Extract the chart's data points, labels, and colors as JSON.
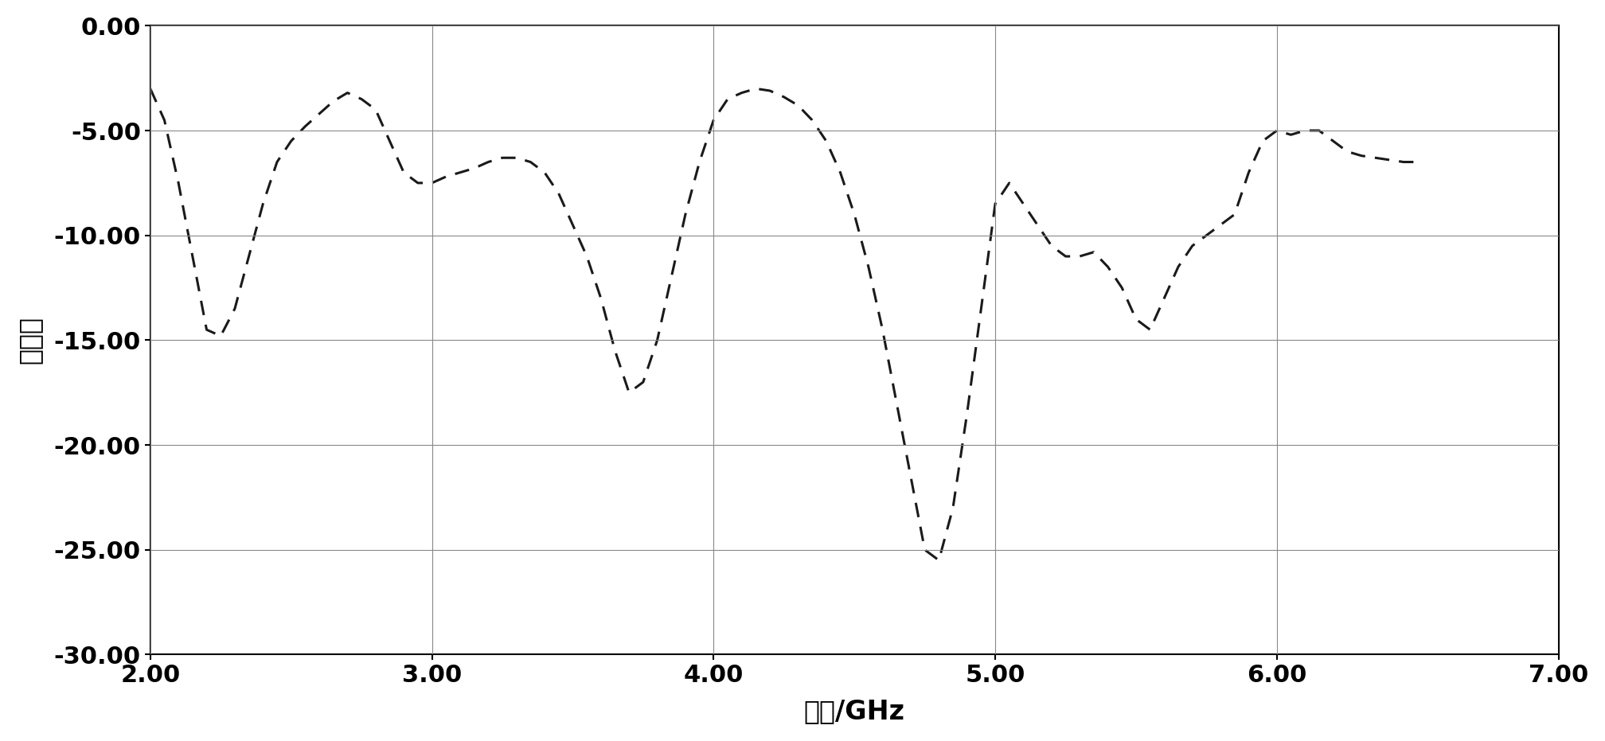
{
  "title": "",
  "xlabel": "频率/GHz",
  "ylabel": "驻波比",
  "xlim": [
    2.0,
    7.0
  ],
  "ylim": [
    -30.0,
    0.0
  ],
  "xticks": [
    2.0,
    3.0,
    4.0,
    5.0,
    6.0,
    7.0
  ],
  "yticks": [
    0.0,
    -5.0,
    -10.0,
    -15.0,
    -20.0,
    -25.0,
    -30.0
  ],
  "xtick_labels": [
    "2.00",
    "3.00",
    "4.00",
    "5.00",
    "6.00",
    "7.00"
  ],
  "ytick_labels": [
    "0.00",
    "-5.00",
    "-10.00",
    "-15.00",
    "-20.00",
    "-25.00",
    "-30.00"
  ],
  "line_color": "#1a1a1a",
  "background_color": "#ffffff",
  "grid_color": "#888888",
  "x": [
    2.0,
    2.05,
    2.1,
    2.15,
    2.2,
    2.25,
    2.3,
    2.35,
    2.4,
    2.45,
    2.5,
    2.55,
    2.6,
    2.65,
    2.7,
    2.75,
    2.8,
    2.85,
    2.9,
    2.95,
    3.0,
    3.05,
    3.1,
    3.15,
    3.2,
    3.25,
    3.3,
    3.35,
    3.4,
    3.45,
    3.5,
    3.55,
    3.6,
    3.65,
    3.7,
    3.75,
    3.8,
    3.85,
    3.9,
    3.95,
    4.0,
    4.05,
    4.1,
    4.15,
    4.2,
    4.25,
    4.3,
    4.35,
    4.4,
    4.45,
    4.5,
    4.55,
    4.6,
    4.65,
    4.7,
    4.75,
    4.8,
    4.85,
    4.9,
    4.95,
    5.0,
    5.05,
    5.1,
    5.15,
    5.2,
    5.25,
    5.3,
    5.35,
    5.4,
    5.45,
    5.5,
    5.55,
    5.6,
    5.65,
    5.7,
    5.75,
    5.8,
    5.85,
    5.9,
    5.95,
    6.0,
    6.05,
    6.1,
    6.15,
    6.2,
    6.25,
    6.3,
    6.35,
    6.4,
    6.45,
    6.5
  ],
  "y": [
    -3.0,
    -4.5,
    -7.5,
    -11.0,
    -14.5,
    -14.8,
    -13.5,
    -11.0,
    -8.5,
    -6.5,
    -5.5,
    -4.8,
    -4.2,
    -3.6,
    -3.2,
    -3.5,
    -4.0,
    -5.5,
    -7.0,
    -7.5,
    -7.5,
    -7.2,
    -7.0,
    -6.8,
    -6.5,
    -6.3,
    -6.3,
    -6.5,
    -7.0,
    -8.0,
    -9.5,
    -11.0,
    -13.0,
    -15.5,
    -17.5,
    -17.0,
    -15.0,
    -12.0,
    -9.0,
    -6.5,
    -4.5,
    -3.5,
    -3.2,
    -3.0,
    -3.1,
    -3.4,
    -3.8,
    -4.5,
    -5.5,
    -7.0,
    -9.0,
    -11.5,
    -14.5,
    -18.0,
    -21.5,
    -25.0,
    -25.5,
    -23.0,
    -18.5,
    -13.5,
    -8.5,
    -7.5,
    -8.5,
    -9.5,
    -10.5,
    -11.0,
    -11.0,
    -10.8,
    -11.5,
    -12.5,
    -14.0,
    -14.5,
    -13.0,
    -11.5,
    -10.5,
    -10.0,
    -9.5,
    -9.0,
    -7.0,
    -5.5,
    -5.0,
    -5.2,
    -5.0,
    -5.0,
    -5.5,
    -6.0,
    -6.2,
    -6.3,
    -6.4,
    -6.5,
    -6.5
  ]
}
